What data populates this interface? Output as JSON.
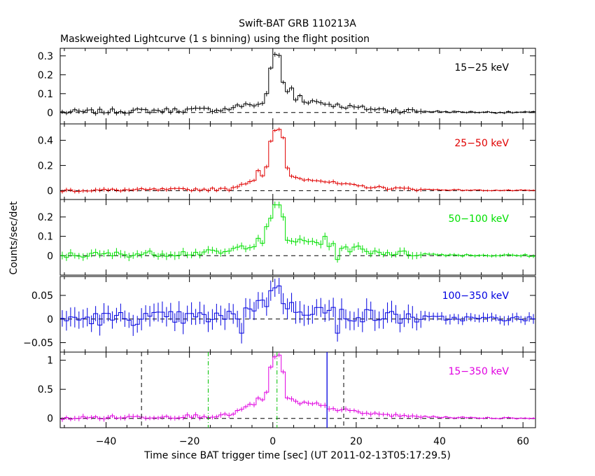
{
  "chart_data": {
    "type": "line",
    "title": "Swift-BAT GRB 110213A",
    "subtitle": "Maskweighted Lightcurve (1 s binning) using the flight position",
    "xlabel": "Time since BAT trigger time [sec] (UT 2011-02-13T05:17:29.5)",
    "ylabel": "Counts/sec/det",
    "xlim": [
      -51,
      63
    ],
    "xticks": [
      -40,
      -20,
      0,
      20,
      40,
      60
    ],
    "xtick_labels": [
      "−40",
      "−20",
      "0",
      "20",
      "40",
      "60"
    ],
    "reference_lines": {
      "black_dashed": [
        -31.5,
        17
      ],
      "green_dashdot": [
        -15.5,
        1
      ],
      "blue_solid": [
        13
      ]
    },
    "panels": [
      {
        "band": "15−25 keV",
        "color": "#000000",
        "ylim": [
          -0.06,
          0.34
        ],
        "yticks": [
          0,
          0.1,
          0.2,
          0.3
        ],
        "ytick_labels": [
          "0",
          "0.1",
          "0.2",
          "0.3"
        ],
        "peak": 0.3,
        "err": 0.012,
        "shoulder": 0.05,
        "tail": 0.06,
        "pre": 0.03,
        "noise": 0.012,
        "anchors": [
          [
            -2,
            0.1
          ],
          [
            2,
            0.16
          ],
          [
            4,
            0.13
          ],
          [
            6,
            0.09
          ]
        ]
      },
      {
        "band": "25−50 keV",
        "color": "#e00000",
        "ylim": [
          -0.07,
          0.53
        ],
        "yticks": [
          0,
          0.2,
          0.4
        ],
        "ytick_labels": [
          "0",
          "0.2",
          "0.4"
        ],
        "peak": 0.48,
        "err": 0.015,
        "shoulder": 0.13,
        "tail": 0.09,
        "pre": 0.02,
        "noise": 0.01,
        "anchors": [
          [
            -4,
            0.16
          ],
          [
            -2,
            0.19
          ],
          [
            2,
            0.42
          ],
          [
            3,
            0.18
          ]
        ]
      },
      {
        "band": "50−100 keV",
        "color": "#00e000",
        "ylim": [
          -0.1,
          0.29
        ],
        "yticks": [
          0,
          0.1,
          0.2
        ],
        "ytick_labels": [
          "0",
          "0.1",
          "0.2"
        ],
        "peak": 0.25,
        "err": 0.018,
        "shoulder": 0.08,
        "tail": 0.07,
        "pre": 0.03,
        "noise": 0.015,
        "anchors": [
          [
            -4,
            0.09
          ],
          [
            -2,
            0.15
          ],
          [
            2,
            0.2
          ],
          [
            3,
            0.08
          ],
          [
            12,
            0.1
          ],
          [
            15,
            -0.02
          ],
          [
            20,
            0.05
          ]
        ]
      },
      {
        "band": "100−350 keV",
        "color": "#0000e0",
        "ylim": [
          -0.07,
          0.09
        ],
        "yticks": [
          -0.05,
          0,
          0.05
        ],
        "ytick_labels": [
          "−0.05",
          "0",
          "0.05"
        ],
        "peak": 0.06,
        "err": 0.02,
        "shoulder": 0.04,
        "tail": 0.02,
        "pre": 0.005,
        "noise": 0.015,
        "anchors": [
          [
            -8,
            -0.03
          ],
          [
            -3,
            0.04
          ],
          [
            -1,
            0.06
          ],
          [
            1,
            0.07
          ],
          [
            15,
            -0.03
          ],
          [
            29,
            0.01
          ]
        ]
      },
      {
        "band": "15−350 keV",
        "color": "#e000e0",
        "ylim": [
          -0.16,
          1.14
        ],
        "yticks": [
          0,
          0.5,
          1
        ],
        "ytick_labels": [
          "0",
          "0.5",
          "1"
        ],
        "peak": 1.08,
        "err": 0.04,
        "shoulder": 0.35,
        "tail": 0.25,
        "pre": 0.08,
        "noise": 0.03,
        "anchors": [
          [
            -4,
            0.35
          ],
          [
            -2,
            0.45
          ],
          [
            2,
            0.8
          ],
          [
            3,
            0.35
          ],
          [
            6,
            0.25
          ],
          [
            9,
            0.25
          ]
        ]
      }
    ]
  }
}
